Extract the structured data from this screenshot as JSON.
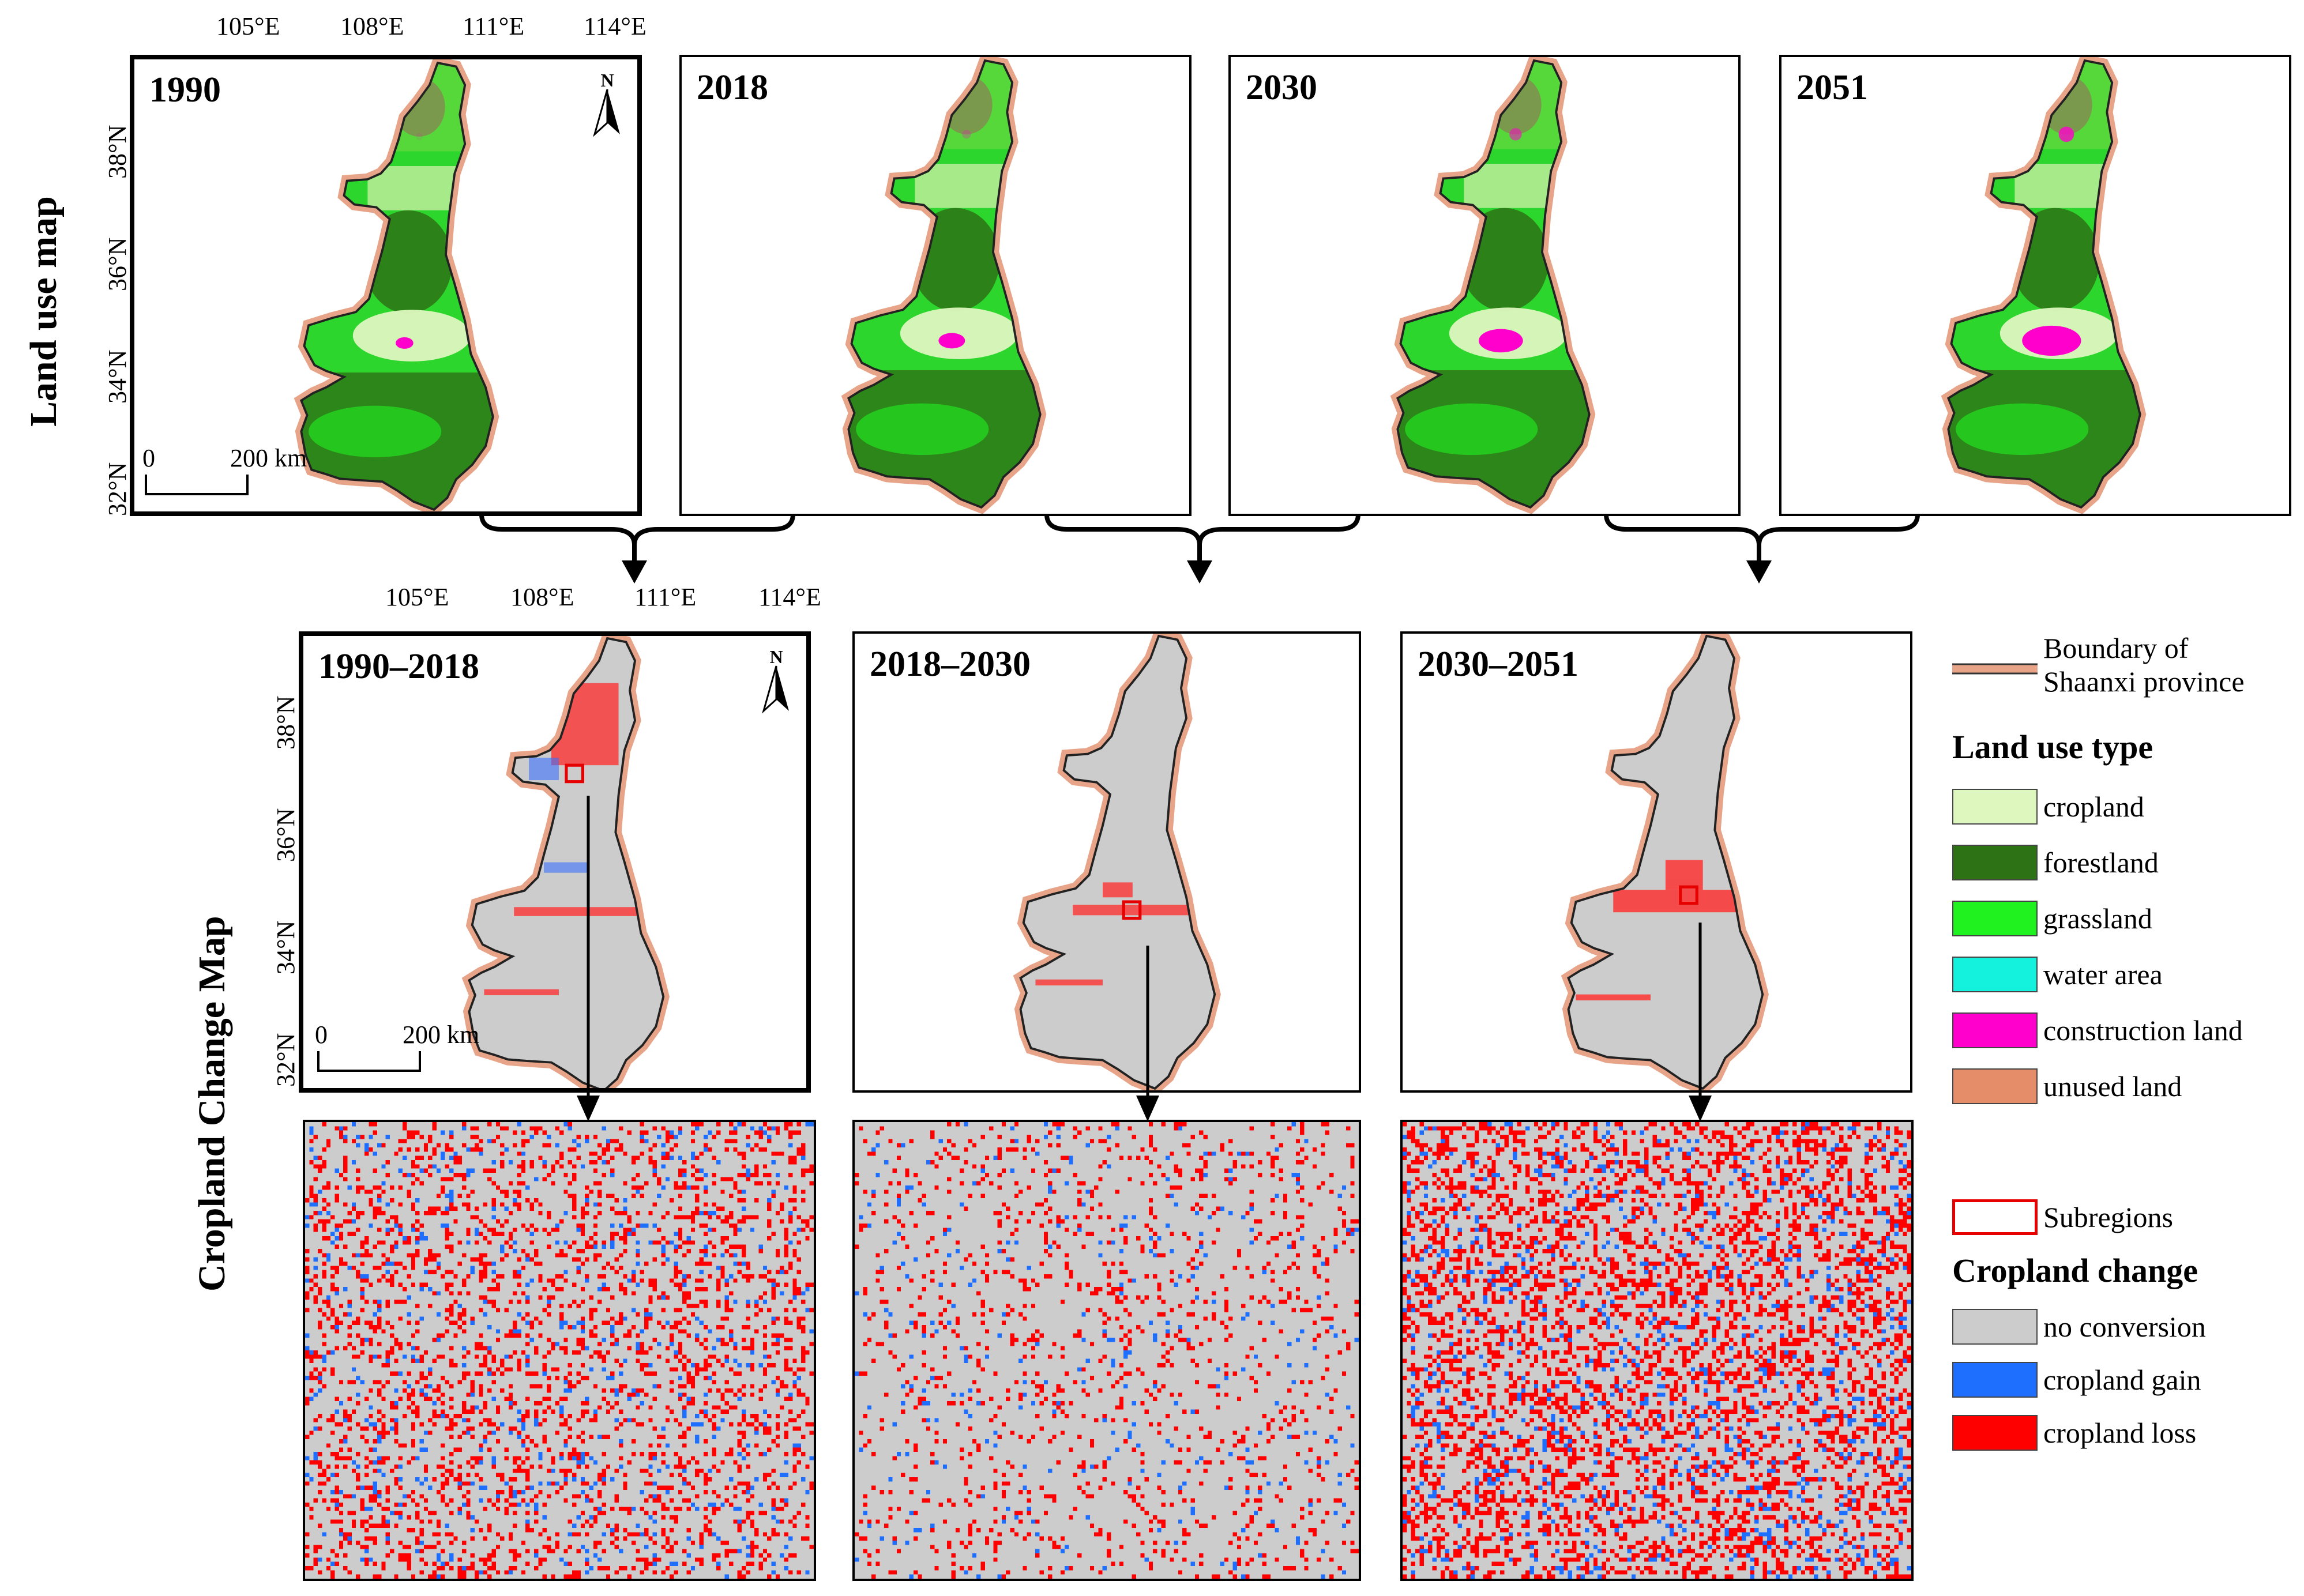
{
  "row_labels": {
    "top": "Land use map",
    "middle": "Cropland Change Map"
  },
  "lon_ticks": [
    "105°E",
    "108°E",
    "111°E",
    "114°E"
  ],
  "lat_ticks": [
    "38°N",
    "36°N",
    "34°N",
    "32°N"
  ],
  "north_label": "N",
  "scale_bar": {
    "zero": "0",
    "end": "200 km"
  },
  "land_use_panels": [
    {
      "title": "1990",
      "construction_level": 0.1
    },
    {
      "title": "2018",
      "construction_level": 0.25
    },
    {
      "title": "2030",
      "construction_level": 0.55
    },
    {
      "title": "2051",
      "construction_level": 0.8
    }
  ],
  "change_panels": [
    {
      "title": "1990–2018"
    },
    {
      "title": "2018–2030"
    },
    {
      "title": "2030–2051"
    }
  ],
  "legend": {
    "boundary_line1": "Boundary of",
    "boundary_line2": "Shaanxi province",
    "land_use_title": "Land use type",
    "land_use_items": [
      {
        "label": "cropland",
        "color": "#ddf7bf"
      },
      {
        "label": "forestland",
        "color": "#2e7216"
      },
      {
        "label": "grassland",
        "color": "#1ff21f"
      },
      {
        "label": "water area",
        "color": "#14f2dd"
      },
      {
        "label": "construction land",
        "color": "#ff00cc"
      },
      {
        "label": "unused land",
        "color": "#e58c68"
      }
    ],
    "subregions_label": "Subregions",
    "cropland_change_title": "Cropland change",
    "cropland_change_items": [
      {
        "label": "no conversion",
        "color": "#cccccc"
      },
      {
        "label": "cropland gain",
        "color": "#1f6fff"
      },
      {
        "label": "cropland loss",
        "color": "#ff0000"
      }
    ]
  },
  "colors": {
    "boundary": "#e8a488",
    "subregion": "#e60000",
    "no_conversion": "#cccccc",
    "gain": "#1f6fff",
    "loss": "#ff0000"
  }
}
